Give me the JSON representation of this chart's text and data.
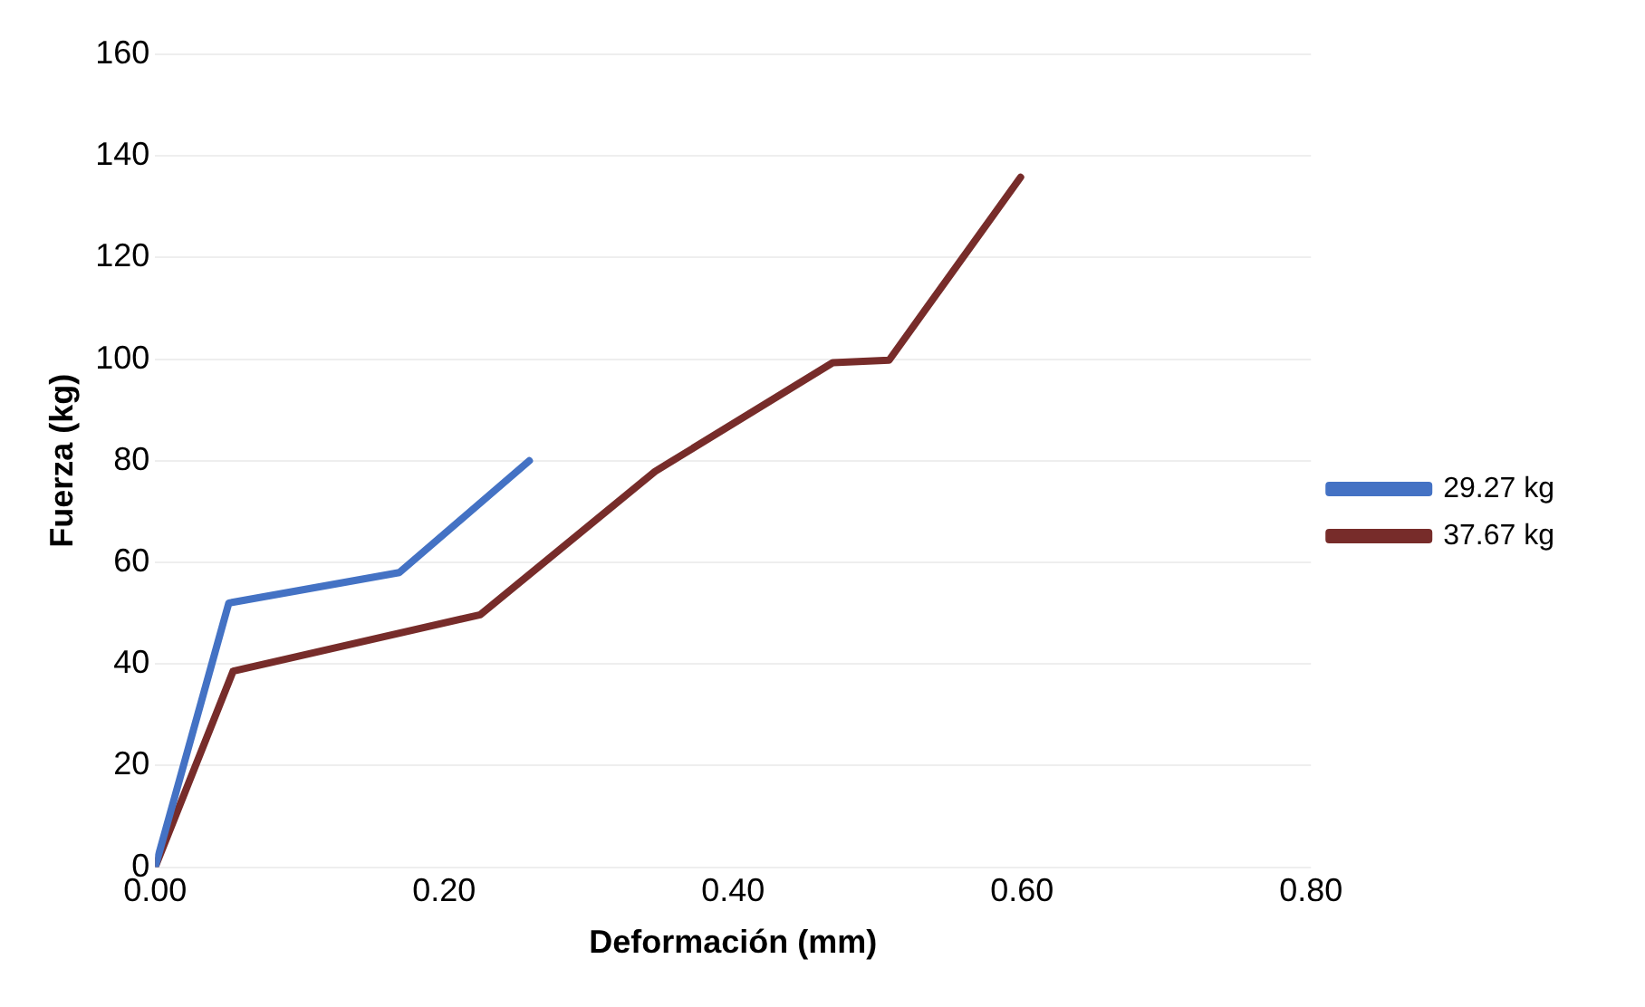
{
  "chart_data": {
    "type": "line",
    "xlabel": "Deformación (mm)",
    "ylabel": "Fuerza (kg)",
    "xlim": [
      0,
      0.8
    ],
    "xticks": [
      {
        "value": 0,
        "label": "0.00"
      },
      {
        "value": 0.2,
        "label": "0.20"
      },
      {
        "value": 0.4,
        "label": "0.40"
      },
      {
        "value": 0.6,
        "label": "0.60"
      },
      {
        "value": 0.8,
        "label": "0.80"
      }
    ],
    "ylim": [
      0,
      160
    ],
    "yticks": [
      0,
      20,
      40,
      60,
      80,
      100,
      120,
      140,
      160
    ],
    "grid": "y",
    "legend": "right",
    "marker": "none",
    "line_style": "solid",
    "series": [
      {
        "name": "29.27 kg",
        "color": "#4472c4",
        "x": [
          0,
          0.051,
          0.169,
          0.259
        ],
        "values": [
          0,
          52,
          58,
          80
        ]
      },
      {
        "name": "37.67 kg",
        "color": "#772c2a",
        "x": [
          0,
          0.054,
          0.225,
          0.346,
          0.469,
          0.508,
          0.599
        ],
        "values": [
          0,
          38.6,
          49.7,
          77.9,
          99.3,
          99.8,
          135.8
        ]
      }
    ]
  }
}
